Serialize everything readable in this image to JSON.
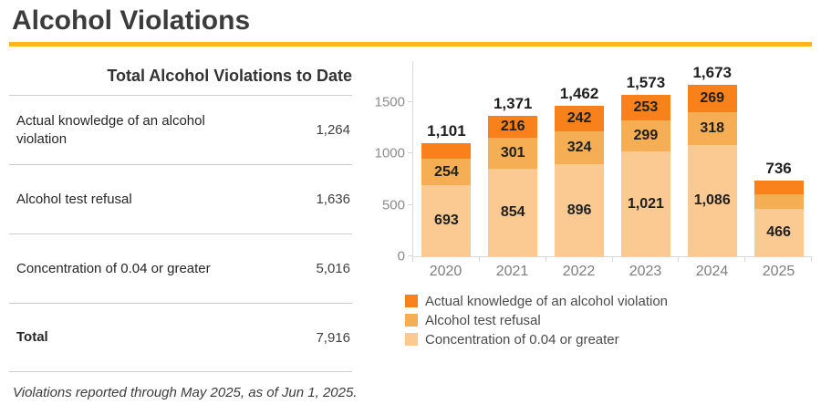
{
  "page": {
    "title": "Alcohol Violations",
    "footnote": "Violations reported through May 2025, as of Jun 1, 2025."
  },
  "summary_table": {
    "title": "Total Alcohol Violations to Date",
    "rows": [
      {
        "label": "Actual knowledge of an alcohol violation",
        "value": "1,264"
      },
      {
        "label": "Alcohol test refusal",
        "value": "1,636"
      },
      {
        "label": "Concentration of 0.04 or greater",
        "value": "5,016"
      },
      {
        "label": "Total",
        "value": "7,916"
      }
    ]
  },
  "chart_data": {
    "type": "bar",
    "stacked": true,
    "categories": [
      "2020",
      "2021",
      "2022",
      "2023",
      "2024",
      "2025"
    ],
    "series": [
      {
        "name": "Concentration of 0.04 or greater",
        "color": "#fbca93",
        "values": [
          693,
          854,
          896,
          1021,
          1086,
          466
        ],
        "labels": [
          "693",
          "854",
          "896",
          "1,021",
          "1,086",
          "466"
        ]
      },
      {
        "name": "Alcohol test refusal",
        "color": "#f6ae55",
        "values": [
          254,
          301,
          324,
          299,
          318,
          140
        ],
        "labels": [
          "254",
          "301",
          "324",
          "299",
          "318",
          ""
        ]
      },
      {
        "name": "Actual knowledge of an alcohol violation",
        "color": "#f8811b",
        "values": [
          154,
          216,
          242,
          253,
          269,
          130
        ],
        "labels": [
          "",
          "216",
          "242",
          "253",
          "269",
          ""
        ]
      }
    ],
    "totals": [
      "1,101",
      "1,371",
      "1,462",
      "1,573",
      "1,673",
      "736"
    ],
    "y_axis": {
      "ticks": [
        0,
        500,
        1000,
        1500
      ],
      "tick_labels": [
        "0",
        "500",
        "1000",
        "1500"
      ],
      "range": [
        0,
        1900
      ]
    },
    "legend_position": "bottom-left",
    "grid": false,
    "accent_colors": {
      "title_rule": "#fbb81d"
    }
  }
}
